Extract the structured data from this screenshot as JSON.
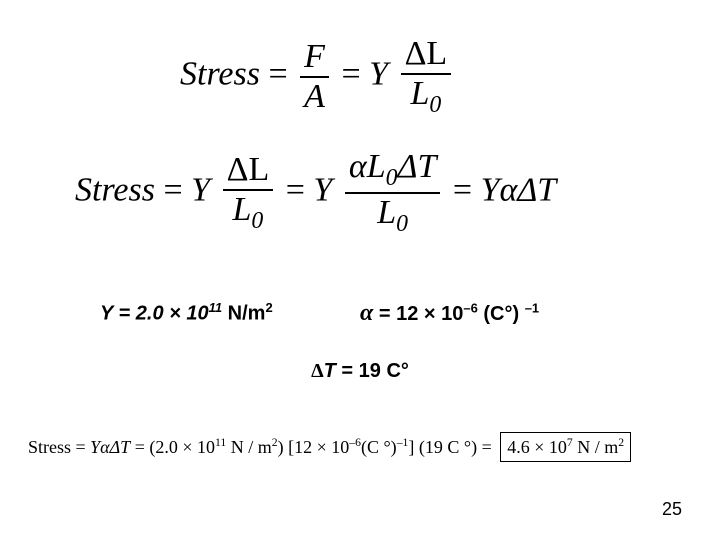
{
  "eq1": {
    "lhs": "Stress",
    "eq": "=",
    "frac1_num": "F",
    "frac1_den": "A",
    "mid": "Y",
    "frac2_num": "ΔL",
    "frac2_den_L": "L",
    "frac2_den_sub": "0"
  },
  "eq2": {
    "lhs": "Stress",
    "eq": "=",
    "Y": "Y",
    "f1_num": "ΔL",
    "f1_den_L": "L",
    "f1_den_sub": "0",
    "f2_num_a": "α",
    "f2_num_L": "L",
    "f2_num_sub": "0",
    "f2_num_dT": "ΔT",
    "f2_den_L": "L",
    "f2_den_sub": "0",
    "rhs": "YαΔT"
  },
  "params": {
    "Y_label": "Y = 2.0 × 10",
    "Y_exp": "11",
    "Y_unit": " N/m",
    "Y_unitexp": "2",
    "a_label": " = 12 × 10",
    "a_exp": "–6",
    "a_unit": " (C°) ",
    "a_unitexp": "–1",
    "dT_sym": "Δ",
    "dT_T": "T",
    "dT_rest": "  = 19 C°"
  },
  "eq3": {
    "pre": "Stress = ",
    "sym": "YαΔT",
    "eq": " = ",
    "open": "(2.0 × 10",
    "e1": "11",
    "u1": " N / m",
    "u1e": "2",
    "close1": ")",
    "br1": "[12 × 10",
    "e2": "–6",
    "u2": "(C °)",
    "u2e": "–1",
    "br1c": "]",
    "br2": "(19 C °)",
    "eq2": " = ",
    "res": "4.6 × 10",
    "rese": "7",
    "resu": " N / m",
    "resue": "2"
  },
  "page": "25",
  "colors": {
    "text": "#000000",
    "bg": "#ffffff"
  }
}
